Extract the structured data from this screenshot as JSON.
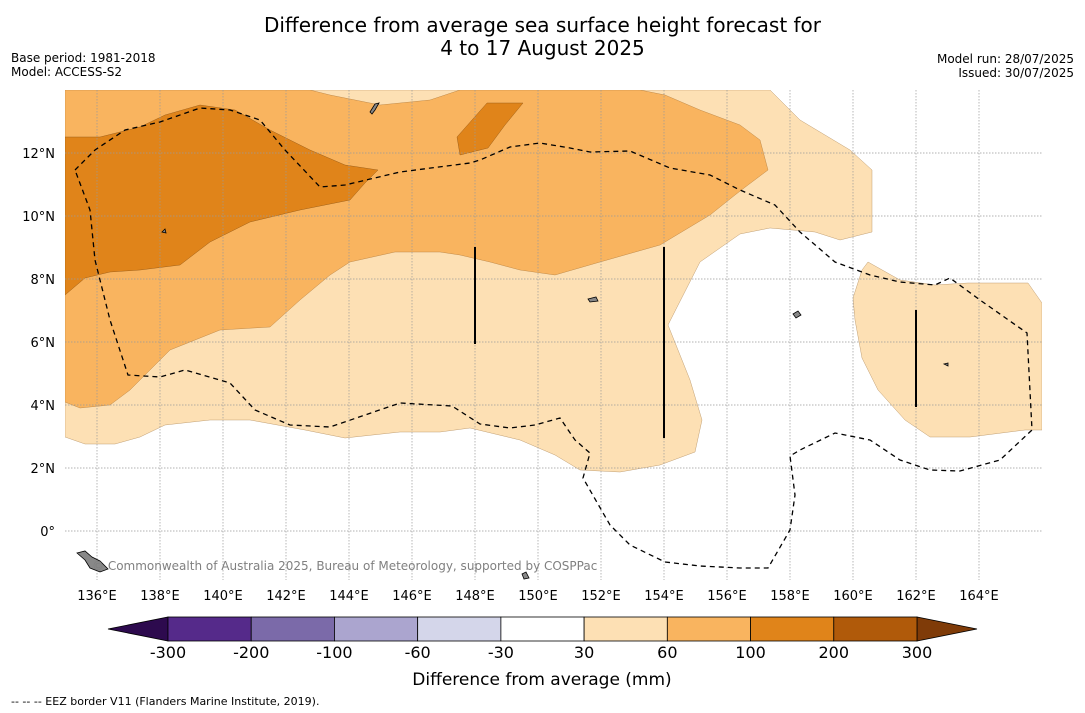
{
  "title_line1": "Difference from average sea surface height forecast for",
  "title_line2": "4 to 17 August 2025",
  "base_period": "Base period: 1981-2018",
  "model": "Model: ACCESS-S2",
  "model_run": "Model run: 28/07/2025",
  "issued": "Issued: 30/07/2025",
  "credit": "© Commonwealth of Australia 2025, Bureau of Meteorology, supported by COSPPac",
  "footer": "-- -- -- EEZ border V11 (Flanders Marine Institute, 2019).",
  "lon_ticks": [
    "136°E",
    "138°E",
    "140°E",
    "142°E",
    "144°E",
    "146°E",
    "148°E",
    "150°E",
    "152°E",
    "154°E",
    "156°E",
    "158°E",
    "160°E",
    "162°E",
    "164°E"
  ],
  "lat_ticks": [
    "12°N",
    "10°N",
    "8°N",
    "6°N",
    "4°N",
    "2°N",
    "0°"
  ],
  "colorbar": {
    "title": "Difference from average (mm)",
    "labels": [
      "-300",
      "-200",
      "-100",
      "-60",
      "-30",
      "30",
      "60",
      "100",
      "200",
      "300"
    ],
    "colors": [
      "#552a8a",
      "#7b6aa9",
      "#aba5cf",
      "#d4d6ea",
      "#ffffff",
      "#fde0b4",
      "#f9b45f",
      "#e0841a",
      "#b05a0a"
    ],
    "under_color": "#2d0a4e",
    "over_color": "#7f3b08"
  },
  "colors": {
    "level_30_60": "#fde0b4",
    "level_60_100": "#f9b45f",
    "level_100_200": "#e0841a",
    "grid": "#999999",
    "land": "#888888"
  }
}
